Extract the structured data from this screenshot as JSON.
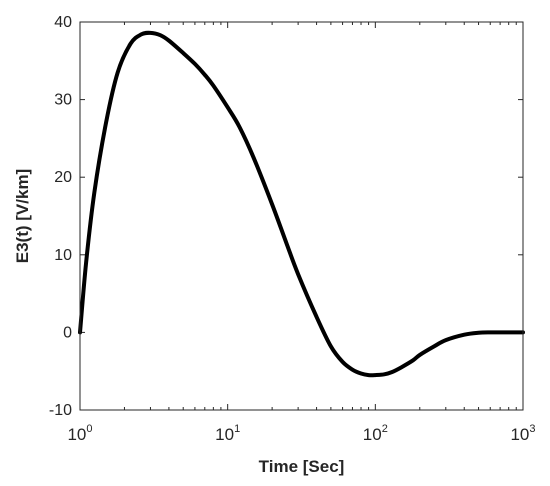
{
  "chart_data": {
    "type": "line",
    "title": "",
    "xlabel": "Time [Sec]",
    "ylabel": "E3(t) [V/km]",
    "x_scale": "log",
    "xlim": [
      1,
      1000
    ],
    "ylim": [
      -10,
      40
    ],
    "x_ticks": [
      {
        "value": 1,
        "base": "10",
        "exp": "0"
      },
      {
        "value": 10,
        "base": "10",
        "exp": "1"
      },
      {
        "value": 100,
        "base": "10",
        "exp": "2"
      },
      {
        "value": 1000,
        "base": "10",
        "exp": "3"
      }
    ],
    "y_ticks": [
      {
        "value": -10,
        "label": "-10"
      },
      {
        "value": 0,
        "label": "0"
      },
      {
        "value": 10,
        "label": "10"
      },
      {
        "value": 20,
        "label": "20"
      },
      {
        "value": 30,
        "label": "30"
      },
      {
        "value": 40,
        "label": "40"
      }
    ],
    "grid": false,
    "box": true,
    "line_color": "#000000",
    "series": [
      {
        "x": [
          1.0,
          1.1,
          1.25,
          1.5,
          1.8,
          2.2,
          2.6,
          3.0,
          3.5,
          4.0,
          5.0,
          6.0,
          7.0,
          8.0,
          10,
          12,
          15,
          20,
          25,
          30,
          40,
          50,
          60,
          70,
          80,
          90,
          100,
          115,
          130,
          150,
          180,
          200,
          250,
          300,
          400,
          500,
          600,
          700,
          800,
          1000
        ],
        "y": [
          0,
          9,
          18,
          27,
          33.5,
          37.2,
          38.4,
          38.6,
          38.3,
          37.6,
          36.0,
          34.6,
          33.2,
          31.8,
          29.0,
          26.5,
          22.5,
          16.5,
          11.5,
          7.5,
          2.0,
          -1.8,
          -3.8,
          -4.8,
          -5.3,
          -5.5,
          -5.5,
          -5.4,
          -5.1,
          -4.5,
          -3.6,
          -2.9,
          -1.8,
          -1.0,
          -0.3,
          -0.05,
          0,
          0,
          0,
          0
        ]
      }
    ]
  }
}
